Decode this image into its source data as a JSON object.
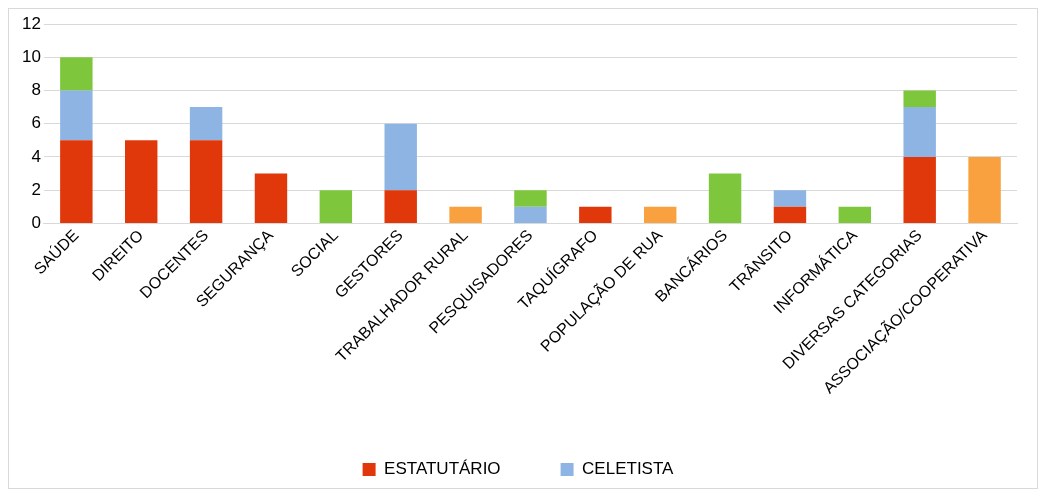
{
  "chart_data": {
    "type": "bar",
    "stacked": true,
    "categories": [
      "SAÚDE",
      "DIREITO",
      "DOCENTES",
      "SEGURANÇA",
      "SOCIAL",
      "GESTORES",
      "TRABALHADOR RURAL",
      "PESQUISADORES",
      "TAQUÍGRAFO",
      "POPULAÇÃO DE RUA",
      "BANCÁRIOS",
      "TRÂNSITO",
      "INFORMÁTICA",
      "DIVERSAS CATEGORIAS",
      "ASSOCIAÇÃO/COOPERATIVA"
    ],
    "series": [
      {
        "name": "ESTATUTÁRIO",
        "color": "#e0380a",
        "values": [
          5,
          5,
          5,
          3,
          null,
          2,
          null,
          null,
          1,
          null,
          null,
          1,
          null,
          4,
          null
        ]
      },
      {
        "name": "CELETISTA",
        "color": "#8eb4e3",
        "values": [
          3,
          null,
          2,
          null,
          null,
          4,
          null,
          1,
          null,
          null,
          null,
          1,
          null,
          3,
          null
        ]
      },
      {
        "color": "#7ec73c",
        "values": [
          2,
          null,
          null,
          null,
          2,
          null,
          null,
          1,
          null,
          null,
          3,
          null,
          1,
          1,
          null
        ]
      },
      {
        "color": "#f9a03f",
        "values": [
          null,
          null,
          null,
          null,
          null,
          null,
          1,
          null,
          null,
          1,
          null,
          null,
          null,
          null,
          4
        ]
      }
    ],
    "ylim": [
      0,
      12
    ],
    "yticks": [
      0,
      2,
      4,
      6,
      8,
      10,
      12
    ],
    "grid": "y",
    "legend": "bottom"
  }
}
